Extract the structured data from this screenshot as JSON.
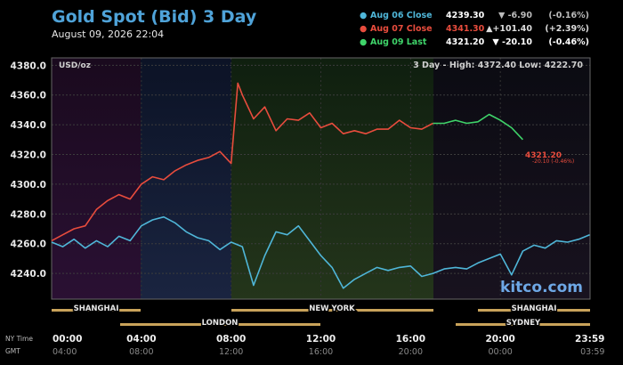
{
  "header": {
    "title": "Gold Spot (Bid) 3 Day",
    "datetime": "August 09, 2026 22:04",
    "unit_label": "USD/oz",
    "range_text": "3 Day - High: 4372.40  Low: 4222.70",
    "watermark": "kitco.com"
  },
  "legend": [
    {
      "label": "Aug 06 Close",
      "price": "4239.30",
      "arrow": "▼",
      "change": "-6.90",
      "pct": "(-0.16%)",
      "color": "#4fb6d8",
      "price_color": "#ffffff",
      "chg_color": "#bbbbbb"
    },
    {
      "label": "Aug 07 Close",
      "price": "4341.30",
      "arrow": "▲",
      "change": "+101.40",
      "pct": "(+2.39%)",
      "color": "#e84c3d",
      "price_color": "#e84c3d",
      "chg_color": "#dddddd"
    },
    {
      "label": "Aug 09 Last",
      "price": "4321.20",
      "arrow": "▼",
      "change": "-20.10",
      "pct": "(-0.46%)",
      "color": "#3fd46a",
      "price_color": "#ffffff",
      "chg_color": "#ffffff"
    }
  ],
  "last_marker": {
    "price": "4321.20",
    "change": "-20.10 (-0.46%)",
    "color": "#e84c3d"
  },
  "sessions": {
    "top": [
      "SHANGHAI",
      "NEW YORK",
      "SHANGHAI"
    ],
    "bottom": [
      "LONDON",
      "SYDNEY"
    ]
  },
  "x_axis": {
    "ny_label": "NY Time",
    "gmt_label": "GMT",
    "ny_ticks": [
      "00:00",
      "04:00",
      "08:00",
      "12:00",
      "16:00",
      "20:00",
      "23:59"
    ],
    "gmt_ticks": [
      "04:00",
      "08:00",
      "12:00",
      "16:00",
      "20:00",
      "00:00",
      "03:59"
    ]
  },
  "chart_data": {
    "type": "line",
    "ylim": [
      4222.7,
      4385
    ],
    "xlim": [
      0,
      24
    ],
    "y_ticks": [
      "4380.0",
      "4360.0",
      "4340.0",
      "4320.0",
      "4300.0",
      "4280.0",
      "4260.0",
      "4240.0"
    ],
    "y_tick_values": [
      4380,
      4360,
      4340,
      4320,
      4300,
      4280,
      4260,
      4240
    ],
    "high": 4372.4,
    "low": 4222.7,
    "series": [
      {
        "name": "Aug 06 Close",
        "color": "#4fb6d8",
        "x": [
          0,
          0.5,
          1,
          1.5,
          2,
          2.5,
          3,
          3.5,
          4,
          4.5,
          5,
          5.5,
          6,
          6.5,
          7,
          7.5,
          8,
          8.5,
          9,
          9.5,
          10,
          10.5,
          11,
          11.5,
          12,
          12.5,
          13,
          13.5,
          14,
          14.5,
          15,
          15.5,
          16,
          16.5,
          17,
          17.5,
          18,
          18.5,
          19,
          19.5,
          20,
          20.5,
          21,
          21.5,
          22,
          22.5,
          23,
          23.5,
          23.98
        ],
        "values": [
          4261,
          4258,
          4263,
          4257,
          4262,
          4258,
          4265,
          4262,
          4272,
          4276,
          4278,
          4274,
          4268,
          4264,
          4262,
          4256,
          4261,
          4258,
          4232,
          4252,
          4268,
          4266,
          4272,
          4262,
          4252,
          4244,
          4230,
          4236,
          4240,
          4244,
          4242,
          4244,
          4245,
          4238,
          4240,
          4243,
          4244,
          4243,
          4247,
          4250,
          4253,
          4239,
          4255,
          4259,
          4257,
          4262,
          4261,
          4263,
          4266
        ]
      },
      {
        "name": "Aug 07 Close",
        "color": "#e84c3d",
        "x": [
          0,
          0.5,
          1,
          1.5,
          2,
          2.5,
          3,
          3.5,
          4,
          4.5,
          5,
          5.5,
          6,
          6.5,
          7,
          7.5,
          8,
          8.3,
          8.5,
          9,
          9.5,
          10,
          10.5,
          11,
          11.5,
          12,
          12.5,
          13,
          13.5,
          14,
          14.5,
          15,
          15.5,
          16,
          16.5,
          17
        ],
        "values": [
          4262,
          4266,
          4270,
          4272,
          4283,
          4289,
          4293,
          4290,
          4300,
          4305,
          4303,
          4309,
          4313,
          4316,
          4318,
          4322,
          4314,
          4368,
          4360,
          4344,
          4352,
          4336,
          4344,
          4343,
          4348,
          4338,
          4341,
          4334,
          4336,
          4334,
          4337,
          4337,
          4343,
          4338,
          4337,
          4341
        ]
      },
      {
        "name": "Aug 09 Last",
        "color": "#3fd46a",
        "x": [
          17,
          17.5,
          18,
          18.5,
          19,
          19.5,
          20,
          20.5,
          21
        ],
        "values": [
          4341,
          4341,
          4343,
          4341,
          4342,
          4347,
          4343,
          4338,
          4330
        ]
      }
    ]
  }
}
